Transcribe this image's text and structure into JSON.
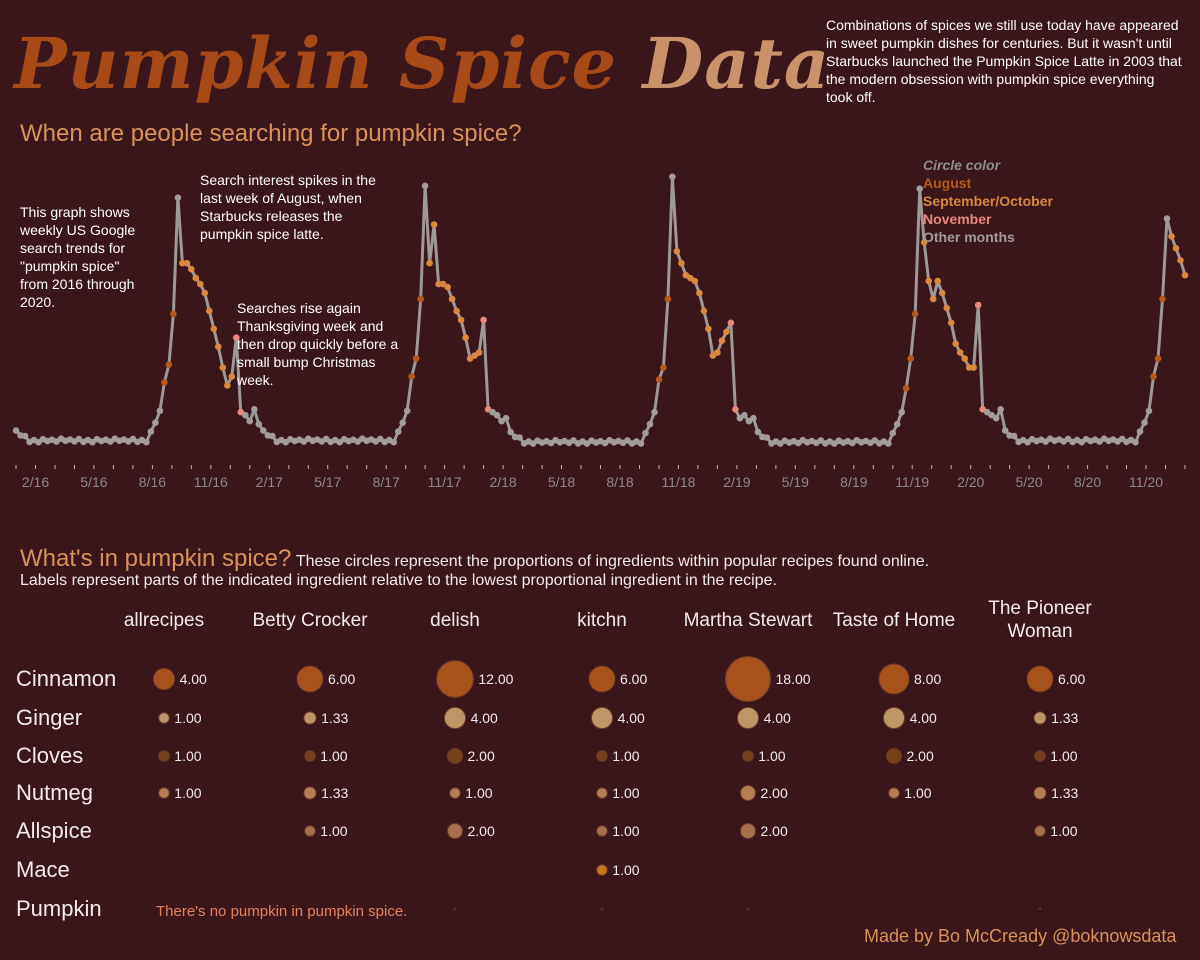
{
  "title": {
    "part1": "Pumpkin Spice",
    "part2": "Data"
  },
  "intro": "Combinations of spices we still use today have appeared in sweet pumpkin dishes for centuries. But it wasn't until Starbucks launched the Pumpkin Spice Latte in 2003 that the modern obsession with pumpkin spice everything took off.",
  "search_section": {
    "heading": "When are people searching for pumpkin spice?",
    "note_graph": "This graph shows weekly US Google search trends for \"pumpkin spice\" from 2016 through 2020.",
    "note_august": "Search interest spikes in the last week of August, when Starbucks releases the pumpkin spice latte.",
    "note_november": "Searches rise again Thanksgiving week and then drop quickly before a small bump Christmas week.",
    "legend": {
      "title": "Circle color",
      "items": [
        {
          "label": "August",
          "color": "#b5591f"
        },
        {
          "label": "September/October",
          "color": "#d9883f"
        },
        {
          "label": "November",
          "color": "#e8877a"
        },
        {
          "label": "Other months",
          "color": "#a29c9a"
        }
      ]
    }
  },
  "ingredients_section": {
    "heading": "What's in pumpkin spice?",
    "desc1": "These circles represent the proportions of ingredients within popular recipes found online.",
    "desc2": "Labels represent parts of the indicated ingredient relative to the lowest proportional ingredient in the recipe.",
    "no_pumpkin": "There's no pumpkin in pumpkin spice."
  },
  "credit": "Made by Bo McCready @boknowsdata",
  "chart_data": [
    {
      "type": "line",
      "x_tick_labels": [
        "2/16",
        "5/16",
        "8/16",
        "11/16",
        "2/17",
        "5/17",
        "8/17",
        "11/17",
        "2/18",
        "5/18",
        "8/18",
        "11/18",
        "2/19",
        "5/19",
        "8/19",
        "11/19",
        "2/20",
        "5/20",
        "8/20",
        "11/20"
      ],
      "xlim": [
        "2016-01-03",
        "2020-12-27"
      ],
      "ylim": [
        0,
        100
      ],
      "grid": false,
      "years": [
        {
          "year": 2016,
          "peak": 84,
          "sep_oct": [
            62,
            62,
            60,
            57,
            55,
            52,
            46,
            40,
            34,
            27,
            21,
            24
          ],
          "nov": [
            37,
            12
          ],
          "dec": [
            11,
            9,
            13,
            8
          ],
          "aug": [
            22,
            28,
            45
          ],
          "off": 2.5
        },
        {
          "year": 2017,
          "peak": 88,
          "sep_oct": [
            62,
            75,
            55,
            55,
            54,
            50,
            46,
            43,
            37,
            30,
            31,
            32
          ],
          "nov": [
            43,
            13
          ],
          "dec": [
            12,
            11,
            9,
            10
          ],
          "aug": [
            24,
            30,
            50
          ],
          "off": 2.5
        },
        {
          "year": 2018,
          "peak": 91,
          "sep_oct": [
            66,
            62,
            58,
            57,
            56,
            52,
            46,
            40,
            31,
            32,
            36,
            39
          ],
          "nov": [
            42,
            13
          ],
          "dec": [
            10,
            11,
            9,
            10
          ],
          "aug": [
            23,
            27,
            50
          ],
          "off": 2.0
        },
        {
          "year": 2019,
          "peak": 87,
          "sep_oct": [
            69,
            56,
            50,
            56,
            52,
            47,
            42,
            35,
            32,
            30,
            27,
            27
          ],
          "nov": [
            48,
            13
          ],
          "dec": [
            12,
            11,
            10,
            13
          ],
          "aug": [
            20,
            30,
            45
          ],
          "off": 2.0
        },
        {
          "year": 2020,
          "peak": 77,
          "sep_oct": [
            71,
            67,
            63,
            58,
            55,
            53,
            48,
            40,
            35,
            36,
            38,
            36
          ],
          "nov": [
            72,
            15
          ],
          "dec": [
            13,
            11,
            9,
            12
          ],
          "aug": [
            24,
            30,
            50
          ],
          "off": 2.5
        }
      ]
    },
    {
      "type": "bubble",
      "recipes": [
        "allrecipes",
        "Betty Crocker",
        "delish",
        "kitchn",
        "Martha Stewart",
        "Taste of Home",
        "The Pioneer\nWoman"
      ],
      "ingredients": [
        "Cinnamon",
        "Ginger",
        "Cloves",
        "Nutmeg",
        "Allspice",
        "Mace",
        "Pumpkin"
      ],
      "ingredient_colors": [
        "#a6521a",
        "#c9a26e",
        "#74411b",
        "#b57e55",
        "#a6704f",
        "#c47a1a",
        "#6b2a2a"
      ],
      "values": [
        [
          4,
          1,
          1,
          1,
          null,
          null,
          null
        ],
        [
          6,
          1.33,
          1,
          1.33,
          1,
          null,
          null
        ],
        [
          12,
          4,
          2,
          1,
          2,
          null,
          0
        ],
        [
          6,
          4,
          1,
          1,
          1,
          1,
          0
        ],
        [
          18,
          4,
          1,
          2,
          2,
          null,
          0
        ],
        [
          8,
          4,
          2,
          1,
          null,
          null,
          null
        ],
        [
          6,
          1.33,
          1,
          1.33,
          1,
          null,
          0
        ]
      ],
      "value_labels": [
        [
          "4.00",
          "1.00",
          "1.00",
          "1.00",
          "",
          "",
          ""
        ],
        [
          "6.00",
          "1.33",
          "1.00",
          "1.33",
          "1.00",
          "",
          ""
        ],
        [
          "12.00",
          "4.00",
          "2.00",
          "1.00",
          "2.00",
          "",
          ""
        ],
        [
          "6.00",
          "4.00",
          "1.00",
          "1.00",
          "1.00",
          "1.00",
          ""
        ],
        [
          "18.00",
          "4.00",
          "1.00",
          "2.00",
          "2.00",
          "",
          ""
        ],
        [
          "8.00",
          "4.00",
          "2.00",
          "1.00",
          "",
          "",
          ""
        ],
        [
          "6.00",
          "1.33",
          "1.00",
          "1.33",
          "1.00",
          "",
          ""
        ]
      ]
    }
  ]
}
